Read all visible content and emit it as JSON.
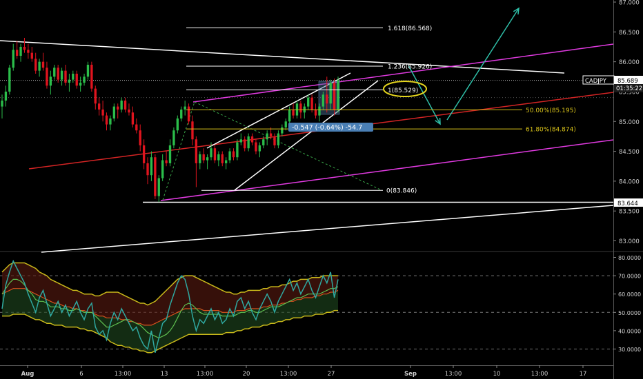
{
  "symbol_tag": "CADJPY",
  "last_price_tag": "85.689",
  "countdown_tag": "01:35:22",
  "low_price_tag": "83.644",
  "measure_label": "-0.547 (-0.64%) -54.7",
  "colors": {
    "background": "#000000",
    "bull": "#2bbd4a",
    "bear": "#e0141e",
    "fib": "#ffffff",
    "fib_gold": "#d9c31a",
    "channel_magenta": "#e03ae0",
    "channel_red": "#d42424",
    "arrow": "#2fbfa8",
    "ellipse": "#e8d81e",
    "rsi": "#2fa8a0",
    "band": "#c8b81a",
    "measure_box": "#4a7fb5"
  },
  "fib_levels": [
    {
      "label": "1.618(86.568)",
      "price": 86.568,
      "color": "fib"
    },
    {
      "label": "1.236(85.926)",
      "price": 85.926,
      "color": "fib"
    },
    {
      "label": "1(85.529)",
      "price": 85.529,
      "color": "fib"
    },
    {
      "label": "50.00%(85.195)",
      "price": 85.195,
      "color": "fib_gold"
    },
    {
      "label": "61.80%(84.874)",
      "price": 84.874,
      "color": "fib_gold"
    },
    {
      "label": "0(83.846)",
      "price": 83.846,
      "color": "fib"
    }
  ],
  "chart_data": [
    {
      "type": "candlestick",
      "symbol": "CADJPY",
      "y_axis": {
        "ticks": [
          "87.000",
          "86.500",
          "86.000",
          "85.500",
          "85.000",
          "84.500",
          "84.000",
          "83.500",
          "83.000"
        ],
        "range": [
          82.8,
          87.05
        ]
      },
      "x_axis": {
        "ticks": [
          "Aug",
          "6",
          "13:00",
          "13",
          "13:00",
          "20",
          "13:00",
          "27",
          "Sep",
          "13:00",
          "10",
          "13:00",
          "17"
        ]
      },
      "series": [
        {
          "name": "CADJPY",
          "candles": [
            [
              85.25,
              85.45,
              85.05,
              85.35
            ],
            [
              85.35,
              85.6,
              85.25,
              85.5
            ],
            [
              85.5,
              85.95,
              85.45,
              85.9
            ],
            [
              85.9,
              86.3,
              85.85,
              86.2
            ],
            [
              86.2,
              86.35,
              86.05,
              86.1
            ],
            [
              86.1,
              86.3,
              86.0,
              86.25
            ],
            [
              86.25,
              86.4,
              86.15,
              86.2
            ],
            [
              86.2,
              86.3,
              86.05,
              86.15
            ],
            [
              86.15,
              86.25,
              86.0,
              86.05
            ],
            [
              86.05,
              86.15,
              85.8,
              85.85
            ],
            [
              85.85,
              86.05,
              85.75,
              86.0
            ],
            [
              86.0,
              86.15,
              85.85,
              85.9
            ],
            [
              85.9,
              86.0,
              85.55,
              85.6
            ],
            [
              85.6,
              85.85,
              85.45,
              85.75
            ],
            [
              85.75,
              85.95,
              85.7,
              85.9
            ],
            [
              85.9,
              85.95,
              85.65,
              85.7
            ],
            [
              85.7,
              85.9,
              85.6,
              85.85
            ],
            [
              85.85,
              85.95,
              85.6,
              85.65
            ],
            [
              85.65,
              85.8,
              85.5,
              85.7
            ],
            [
              85.7,
              85.85,
              85.65,
              85.8
            ],
            [
              85.8,
              85.85,
              85.55,
              85.6
            ],
            [
              85.6,
              85.75,
              85.5,
              85.65
            ],
            [
              85.65,
              85.8,
              85.6,
              85.75
            ],
            [
              85.75,
              86.0,
              85.7,
              85.95
            ],
            [
              85.95,
              86.0,
              85.5,
              85.55
            ],
            [
              85.55,
              85.6,
              85.2,
              85.3
            ],
            [
              85.3,
              85.4,
              85.1,
              85.2
            ],
            [
              85.2,
              85.35,
              85.0,
              85.1
            ],
            [
              85.1,
              85.15,
              84.85,
              84.95
            ],
            [
              84.95,
              85.1,
              84.85,
              85.05
            ],
            [
              85.05,
              85.3,
              85.0,
              85.25
            ],
            [
              85.25,
              85.3,
              85.05,
              85.2
            ],
            [
              85.2,
              85.4,
              85.15,
              85.35
            ],
            [
              85.35,
              85.4,
              85.15,
              85.2
            ],
            [
              85.2,
              85.3,
              85.1,
              85.15
            ],
            [
              85.15,
              85.25,
              84.9,
              84.95
            ],
            [
              84.95,
              85.05,
              84.8,
              84.85
            ],
            [
              84.85,
              84.95,
              84.5,
              84.6
            ],
            [
              84.6,
              84.7,
              84.2,
              84.3
            ],
            [
              84.3,
              84.4,
              83.95,
              84.1
            ],
            [
              84.1,
              84.5,
              84.0,
              84.4
            ],
            [
              84.4,
              84.45,
              83.7,
              83.75
            ],
            [
              83.75,
              84.1,
              83.65,
              84.05
            ],
            [
              84.05,
              84.45,
              84.0,
              84.35
            ],
            [
              84.35,
              84.5,
              84.25,
              84.3
            ],
            [
              84.3,
              84.7,
              84.25,
              84.6
            ],
            [
              84.6,
              84.9,
              84.55,
              84.85
            ],
            [
              84.85,
              85.1,
              84.8,
              85.05
            ],
            [
              85.05,
              85.25,
              85.0,
              85.2
            ],
            [
              85.2,
              85.35,
              85.1,
              85.25
            ],
            [
              85.25,
              85.3,
              84.95,
              85.0
            ],
            [
              85.0,
              85.1,
              84.6,
              84.7
            ],
            [
              84.7,
              84.75,
              83.9,
              84.3
            ],
            [
              84.3,
              84.5,
              84.2,
              84.45
            ],
            [
              84.45,
              84.55,
              84.3,
              84.35
            ],
            [
              84.35,
              84.45,
              84.2,
              84.4
            ],
            [
              84.4,
              84.65,
              84.35,
              84.55
            ],
            [
              84.55,
              84.6,
              84.3,
              84.35
            ],
            [
              84.35,
              84.5,
              84.25,
              84.45
            ],
            [
              84.45,
              84.5,
              84.25,
              84.3
            ],
            [
              84.3,
              84.4,
              84.2,
              84.35
            ],
            [
              84.35,
              84.55,
              84.3,
              84.5
            ],
            [
              84.5,
              84.55,
              84.35,
              84.4
            ],
            [
              84.4,
              84.7,
              84.35,
              84.65
            ],
            [
              84.65,
              84.8,
              84.6,
              84.7
            ],
            [
              84.7,
              84.75,
              84.5,
              84.55
            ],
            [
              84.55,
              84.8,
              84.5,
              84.75
            ],
            [
              84.75,
              84.8,
              84.6,
              84.65
            ],
            [
              84.65,
              84.7,
              84.45,
              84.5
            ],
            [
              84.5,
              84.65,
              84.4,
              84.6
            ],
            [
              84.6,
              84.75,
              84.55,
              84.7
            ],
            [
              84.7,
              84.85,
              84.6,
              84.8
            ],
            [
              84.8,
              84.9,
              84.7,
              84.75
            ],
            [
              84.75,
              84.8,
              84.55,
              84.6
            ],
            [
              84.6,
              84.85,
              84.55,
              84.8
            ],
            [
              84.8,
              84.95,
              84.75,
              84.9
            ],
            [
              84.9,
              85.05,
              84.85,
              85.0
            ],
            [
              85.0,
              85.25,
              84.95,
              85.2
            ],
            [
              85.2,
              85.3,
              85.05,
              85.1
            ],
            [
              85.1,
              85.35,
              85.05,
              85.3
            ],
            [
              85.3,
              85.35,
              85.05,
              85.15
            ],
            [
              85.15,
              85.3,
              85.05,
              85.25
            ],
            [
              85.25,
              85.45,
              85.2,
              85.4
            ],
            [
              85.4,
              85.45,
              85.15,
              85.2
            ],
            [
              85.2,
              85.3,
              85.05,
              85.1
            ],
            [
              85.1,
              85.3,
              85.0,
              85.25
            ],
            [
              85.25,
              85.5,
              85.2,
              85.45
            ],
            [
              85.45,
              85.75,
              85.15,
              85.3
            ],
            [
              85.3,
              85.7,
              85.2,
              85.65
            ],
            [
              85.65,
              85.72,
              85.1,
              85.2
            ],
            [
              85.2,
              85.75,
              85.15,
              85.69
            ]
          ]
        }
      ]
    },
    {
      "type": "line",
      "indicator": "oscillator",
      "y_axis": {
        "ticks": [
          "80.0000",
          "70.0000",
          "60.0000",
          "50.0000",
          "40.0000",
          "30.0000"
        ],
        "range": [
          24,
          82
        ]
      },
      "reference_lines": [
        70,
        50,
        30
      ],
      "series": [
        {
          "name": "rsi",
          "values": [
            52,
            65,
            72,
            78,
            74,
            70,
            66,
            60,
            55,
            50,
            58,
            62,
            55,
            48,
            52,
            56,
            50,
            54,
            48,
            52,
            56,
            50,
            46,
            52,
            55,
            42,
            38,
            40,
            35,
            44,
            50,
            46,
            52,
            48,
            44,
            40,
            42,
            36,
            32,
            30,
            40,
            28,
            36,
            44,
            46,
            54,
            60,
            66,
            70,
            68,
            60,
            48,
            40,
            46,
            44,
            48,
            52,
            46,
            50,
            44,
            46,
            52,
            48,
            56,
            58,
            52,
            56,
            50,
            46,
            52,
            56,
            60,
            56,
            50,
            56,
            60,
            64,
            68,
            62,
            66,
            60,
            64,
            68,
            62,
            58,
            64,
            70,
            66,
            72,
            58,
            68
          ]
        },
        {
          "name": "signal",
          "values": [
            60,
            63,
            66,
            68,
            68,
            67,
            65,
            62,
            60,
            57,
            56,
            56,
            55,
            53,
            53,
            53,
            52,
            52,
            51,
            51,
            52,
            51,
            50,
            50,
            50,
            48,
            46,
            44,
            42,
            42,
            43,
            44,
            45,
            46,
            46,
            45,
            44,
            43,
            41,
            39,
            38,
            37,
            36,
            37,
            38,
            40,
            43,
            47,
            51,
            54,
            55,
            54,
            52,
            50,
            49,
            49,
            49,
            49,
            49,
            48,
            48,
            48,
            48,
            49,
            50,
            50,
            51,
            51,
            50,
            50,
            51,
            52,
            53,
            53,
            53,
            54,
            55,
            56,
            57,
            58,
            58,
            59,
            60,
            60,
            60,
            60,
            61,
            62,
            63,
            63,
            64
          ]
        },
        {
          "name": "upper_band",
          "values": [
            72,
            74,
            76,
            77,
            77,
            77,
            77,
            76,
            75,
            74,
            72,
            71,
            70,
            68,
            67,
            66,
            65,
            64,
            63,
            62,
            62,
            61,
            60,
            60,
            60,
            59,
            59,
            60,
            61,
            61,
            61,
            61,
            60,
            59,
            58,
            57,
            56,
            55,
            55,
            54,
            55,
            56,
            58,
            60,
            62,
            64,
            66,
            68,
            69,
            70,
            70,
            70,
            69,
            68,
            67,
            66,
            65,
            64,
            63,
            62,
            61,
            61,
            60,
            60,
            61,
            61,
            62,
            62,
            62,
            62,
            63,
            63,
            64,
            64,
            64,
            65,
            65,
            66,
            67,
            67,
            68,
            68,
            68,
            69,
            69,
            69,
            70,
            70,
            70,
            70,
            70
          ]
        },
        {
          "name": "basis",
          "values": [
            60,
            61,
            62,
            63,
            63,
            63,
            63,
            62,
            61,
            60,
            59,
            58,
            57,
            56,
            55,
            55,
            54,
            53,
            53,
            52,
            52,
            51,
            51,
            50,
            50,
            49,
            48,
            48,
            47,
            47,
            47,
            47,
            46,
            46,
            45,
            45,
            44,
            44,
            43,
            43,
            43,
            44,
            45,
            46,
            47,
            48,
            49,
            50,
            51,
            52,
            52,
            52,
            52,
            52,
            51,
            51,
            51,
            51,
            51,
            50,
            50,
            50,
            50,
            51,
            51,
            51,
            52,
            52,
            52,
            52,
            53,
            53,
            54,
            54,
            54,
            55,
            55,
            56,
            56,
            57,
            57,
            58,
            58,
            58,
            59,
            59,
            60,
            60,
            61,
            61,
            62
          ]
        },
        {
          "name": "lower_band",
          "values": [
            48,
            48,
            48,
            49,
            49,
            49,
            49,
            48,
            47,
            46,
            46,
            45,
            44,
            44,
            43,
            43,
            43,
            42,
            42,
            42,
            42,
            41,
            41,
            40,
            40,
            39,
            38,
            37,
            36,
            34,
            33,
            32,
            32,
            31,
            31,
            30,
            30,
            29,
            29,
            28,
            28,
            29,
            30,
            31,
            32,
            33,
            34,
            35,
            36,
            37,
            38,
            38,
            38,
            38,
            38,
            38,
            38,
            38,
            38,
            38,
            39,
            39,
            39,
            40,
            40,
            41,
            41,
            42,
            42,
            42,
            43,
            43,
            44,
            44,
            45,
            45,
            46,
            46,
            47,
            47,
            47,
            48,
            48,
            48,
            49,
            49,
            49,
            50,
            50,
            51,
            51
          ]
        }
      ]
    }
  ]
}
